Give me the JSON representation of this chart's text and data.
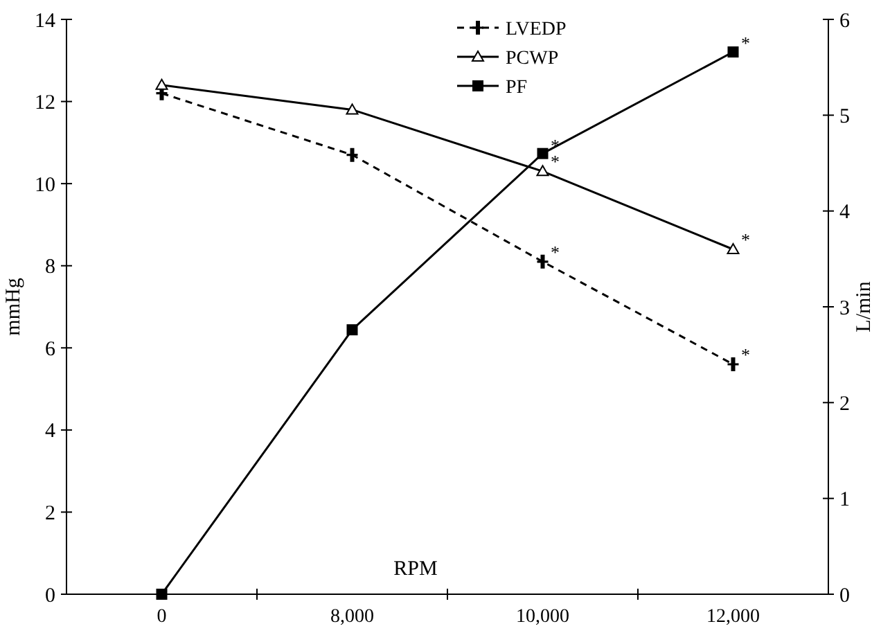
{
  "chart_data": {
    "type": "line",
    "xlabel": "RPM",
    "ylabel": "mmHg",
    "y2label": "L/min",
    "categories": [
      "0",
      "8,000",
      "10,000",
      "12,000"
    ],
    "series": [
      {
        "name": "LVEDP",
        "color": "#000000",
        "values": [
          12.2,
          10.7,
          8.1,
          5.6
        ],
        "marker": "cross",
        "line_style": "dashed"
      },
      {
        "name": "PCWP",
        "color": "#000000",
        "values": [
          12.4,
          11.8,
          10.3,
          8.4
        ],
        "marker": "triangle",
        "line_style": "solid"
      },
      {
        "name": "PF",
        "color": "#000000",
        "values": [
          0,
          2.76,
          4.6,
          5.66
        ],
        "marker": "square",
        "line_style": "solid",
        "axis": "y2"
      }
    ],
    "ylim": [
      0,
      14
    ],
    "yticks": [
      0,
      2,
      4,
      6,
      8,
      10,
      12,
      14
    ],
    "y2lim": [
      0,
      6
    ],
    "y2ticks": [
      0,
      1,
      2,
      3,
      4,
      5,
      6
    ],
    "legend": "top",
    "grid": false,
    "annotations": [
      {
        "text": "*",
        "x": "10,000",
        "y": 8.1
      },
      {
        "text": "*",
        "x": "12,000",
        "y": 5.6
      },
      {
        "text": "*",
        "x": "10,000",
        "y": 10.3
      },
      {
        "text": "*",
        "x": "12,000",
        "y": 8.4
      },
      {
        "text": "*",
        "x": "10,000",
        "y": 10.7
      },
      {
        "text": "*",
        "x": "12,000",
        "y": 13.2
      }
    ]
  }
}
